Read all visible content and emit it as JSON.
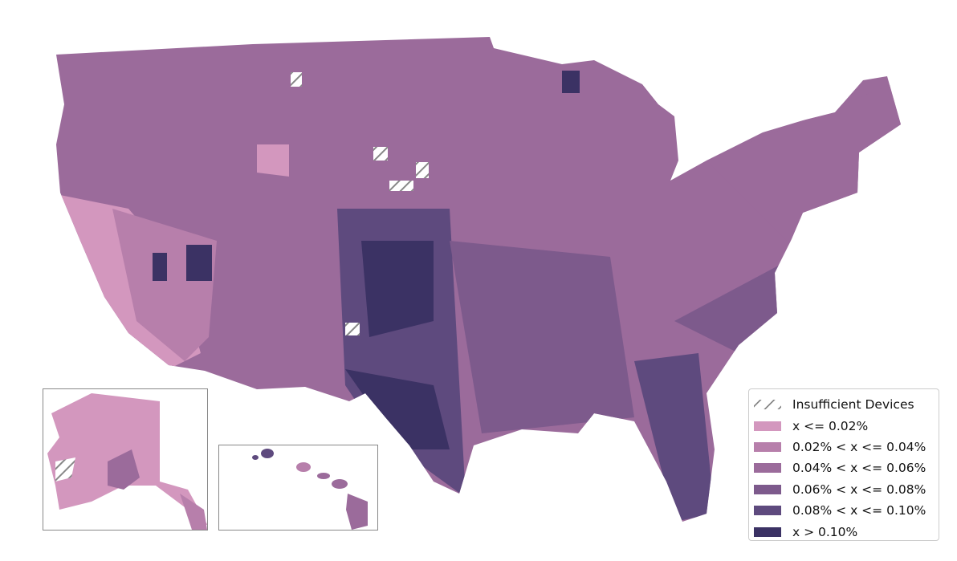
{
  "legend": {
    "items": [
      {
        "label": "Insufficient Devices",
        "color": "hatch"
      },
      {
        "label": "x <= 0.02%",
        "color": "#d397be"
      },
      {
        "label": "0.02% < x <= 0.04%",
        "color": "#b77fab"
      },
      {
        "label": "0.04% < x <= 0.06%",
        "color": "#9b6b9b"
      },
      {
        "label": "0.06% < x <= 0.08%",
        "color": "#7d5a8c"
      },
      {
        "label": "0.08% < x <= 0.10%",
        "color": "#5e4a7e"
      },
      {
        "label": "x > 0.10%",
        "color": "#3b3264"
      }
    ]
  },
  "map": {
    "type": "choropleth",
    "region": "United States counties",
    "insets": [
      "Alaska",
      "Hawaii"
    ]
  }
}
